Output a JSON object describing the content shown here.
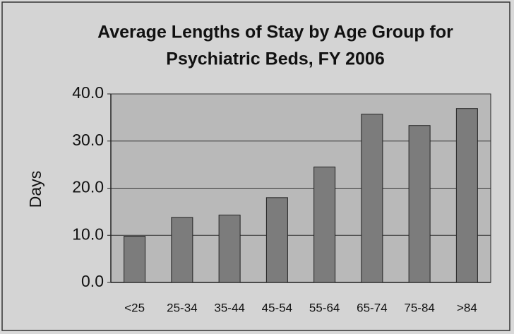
{
  "chart_data": {
    "type": "bar",
    "title": [
      "Average Lengths of Stay by Age Group for",
      "Psychiatric Beds, FY 2006"
    ],
    "y_label": "Days",
    "categories": [
      "<25",
      "25-34",
      "35-44",
      "45-54",
      "55-64",
      "65-74",
      "75-84",
      ">84"
    ],
    "values": [
      9.8,
      13.8,
      14.3,
      18.0,
      24.5,
      35.7,
      33.3,
      36.9
    ],
    "color": "#7c7c7c",
    "ylim": [
      0,
      40
    ],
    "yticks": [
      {
        "value": 0,
        "label": "0.0"
      },
      {
        "value": 10,
        "label": "10.0"
      },
      {
        "value": 20,
        "label": "20.0"
      },
      {
        "value": 30,
        "label": "30.0"
      },
      {
        "value": 40,
        "label": "40.0"
      }
    ],
    "grid": true
  }
}
